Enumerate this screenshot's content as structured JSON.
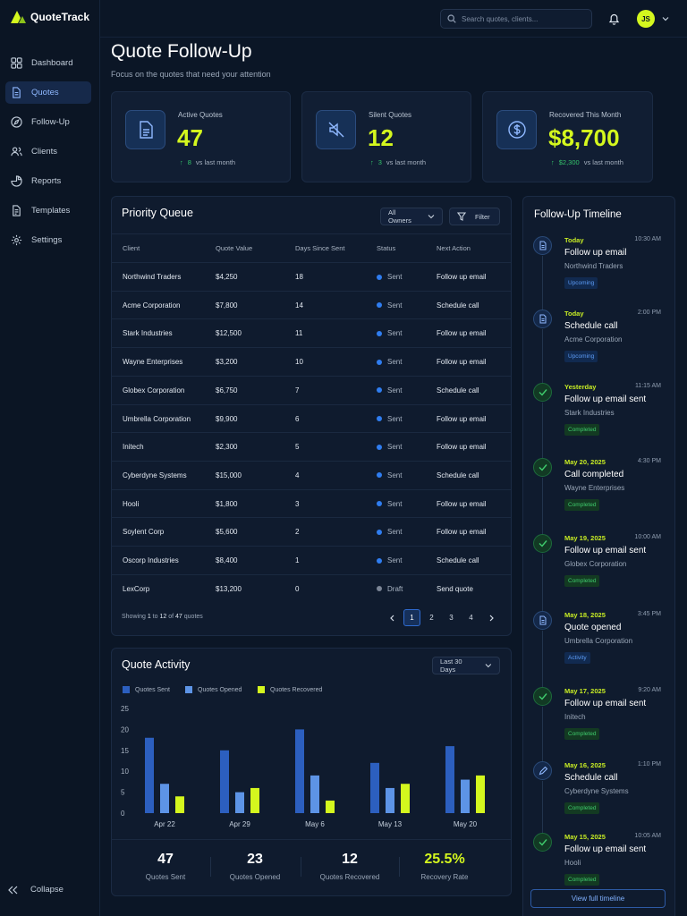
{
  "app": {
    "name": "QuoteTrack"
  },
  "sidebar": {
    "items": [
      {
        "label": "Dashboard",
        "icon": "grid-icon"
      },
      {
        "label": "Quotes",
        "icon": "document-icon",
        "active": true
      },
      {
        "label": "Follow-Up",
        "icon": "compass-icon"
      },
      {
        "label": "Clients",
        "icon": "users-icon"
      },
      {
        "label": "Reports",
        "icon": "pie-chart-icon"
      },
      {
        "label": "Templates",
        "icon": "template-icon"
      },
      {
        "label": "Settings",
        "icon": "gear-icon"
      }
    ],
    "collapse_label": "Collapse"
  },
  "topbar": {
    "search_placeholder": "Search quotes, clients...",
    "avatar_initials": "JS"
  },
  "page": {
    "title": "Quote Follow-Up",
    "subtitle": "Focus on the quotes that need your attention"
  },
  "stats": [
    {
      "label": "Active Quotes",
      "value": "47",
      "delta": "8",
      "delta_suffix": "vs last month",
      "icon": "document-icon"
    },
    {
      "label": "Silent Quotes",
      "value": "12",
      "delta": "3",
      "delta_suffix": "vs last month",
      "icon": "muted-speaker-icon"
    },
    {
      "label": "Recovered This Month",
      "value": "$8,700",
      "delta": "$2,300",
      "delta_suffix": "vs last month",
      "icon": "dollar-icon"
    }
  ],
  "queue": {
    "title": "Priority Queue",
    "owner_filter": "All Owners",
    "filter_label": "Filter",
    "columns": [
      "Client",
      "Quote Value",
      "Days Since Sent",
      "Status",
      "Next Action"
    ],
    "rows": [
      {
        "client": "Northwind Traders",
        "value": "$4,250",
        "days": "18",
        "status": "Sent",
        "action": "Follow up email"
      },
      {
        "client": "Acme Corporation",
        "value": "$7,800",
        "days": "14",
        "status": "Sent",
        "action": "Schedule call"
      },
      {
        "client": "Stark Industries",
        "value": "$12,500",
        "days": "11",
        "status": "Sent",
        "action": "Follow up email"
      },
      {
        "client": "Wayne Enterprises",
        "value": "$3,200",
        "days": "10",
        "status": "Sent",
        "action": "Follow up email"
      },
      {
        "client": "Globex Corporation",
        "value": "$6,750",
        "days": "7",
        "status": "Sent",
        "action": "Schedule call"
      },
      {
        "client": "Umbrella Corporation",
        "value": "$9,900",
        "days": "6",
        "status": "Sent",
        "action": "Follow up email"
      },
      {
        "client": "Initech",
        "value": "$2,300",
        "days": "5",
        "status": "Sent",
        "action": "Follow up email"
      },
      {
        "client": "Cyberdyne Systems",
        "value": "$15,000",
        "days": "4",
        "status": "Sent",
        "action": "Schedule call"
      },
      {
        "client": "Hooli",
        "value": "$1,800",
        "days": "3",
        "status": "Sent",
        "action": "Follow up email"
      },
      {
        "client": "Soylent Corp",
        "value": "$5,600",
        "days": "2",
        "status": "Sent",
        "action": "Follow up email"
      },
      {
        "client": "Oscorp Industries",
        "value": "$8,400",
        "days": "1",
        "status": "Sent",
        "action": "Schedule call"
      },
      {
        "client": "LexCorp",
        "value": "$13,200",
        "days": "0",
        "status": "Draft",
        "action": "Send quote"
      }
    ],
    "showing": {
      "prefix": "Showing",
      "from": "1",
      "to_word": "to",
      "to": "12",
      "of_word": "of",
      "total": "47",
      "suffix": "quotes"
    },
    "pages": [
      "1",
      "2",
      "3",
      "4"
    ],
    "current_page": "1"
  },
  "activity": {
    "title": "Quote Activity",
    "range": "Last 30 Days",
    "summary": [
      {
        "value": "47",
        "label": "Quotes Sent"
      },
      {
        "value": "23",
        "label": "Quotes Opened"
      },
      {
        "value": "12",
        "label": "Quotes Recovered"
      },
      {
        "value": "25.5%",
        "label": "Recovery Rate"
      }
    ]
  },
  "chart_data": {
    "type": "bar",
    "categories": [
      "Apr 22",
      "Apr 29",
      "May 6",
      "May 13",
      "May 20"
    ],
    "series": [
      {
        "name": "Quotes Sent",
        "color": "#2c5fbf",
        "values": [
          18,
          15,
          20,
          12,
          16
        ]
      },
      {
        "name": "Quotes Opened",
        "color": "#5d94e6",
        "values": [
          7,
          5,
          9,
          6,
          8
        ]
      },
      {
        "name": "Quotes Recovered",
        "color": "#d4f71e",
        "values": [
          4,
          6,
          3,
          7,
          9
        ]
      }
    ],
    "yticks": [
      "0",
      "5",
      "10",
      "15",
      "20",
      "25"
    ],
    "ylim": [
      0,
      25
    ],
    "grid": false,
    "legend": "top-left"
  },
  "timeline": {
    "title": "Follow-Up Timeline",
    "items": [
      {
        "date": "Today",
        "time": "10:30 AM",
        "title": "Follow up email",
        "client": "Northwind Traders",
        "badge": "Upcoming",
        "kind": "doc",
        "badge_kind": "up"
      },
      {
        "date": "Today",
        "time": "2:00 PM",
        "title": "Schedule call",
        "client": "Acme Corporation",
        "badge": "Upcoming",
        "kind": "doc",
        "badge_kind": "up"
      },
      {
        "date": "Yesterday",
        "time": "11:15 AM",
        "title": "Follow up email sent",
        "client": "Stark Industries",
        "badge": "Completed",
        "kind": "check",
        "badge_kind": "done"
      },
      {
        "date": "May 20, 2025",
        "time": "4:30 PM",
        "title": "Call completed",
        "client": "Wayne Enterprises",
        "badge": "Completed",
        "kind": "check",
        "badge_kind": "done"
      },
      {
        "date": "May 19, 2025",
        "time": "10:00 AM",
        "title": "Follow up email sent",
        "client": "Globex Corporation",
        "badge": "Completed",
        "kind": "check",
        "badge_kind": "done"
      },
      {
        "date": "May 18, 2025",
        "time": "3:45 PM",
        "title": "Quote opened",
        "client": "Umbrella Corporation",
        "badge": "Activity",
        "kind": "doc",
        "badge_kind": "act"
      },
      {
        "date": "May 17, 2025",
        "time": "9:20 AM",
        "title": "Follow up email sent",
        "client": "Initech",
        "badge": "Completed",
        "kind": "check",
        "badge_kind": "done"
      },
      {
        "date": "May 16, 2025",
        "time": "1:10 PM",
        "title": "Schedule call",
        "client": "Cyberdyne Systems",
        "badge": "Completed",
        "kind": "pencil",
        "badge_kind": "done"
      },
      {
        "date": "May 15, 2025",
        "time": "10:05 AM",
        "title": "Follow up email sent",
        "client": "Hooli",
        "badge": "Completed",
        "kind": "check",
        "badge_kind": "done"
      }
    ],
    "view_all": "View full timeline"
  }
}
